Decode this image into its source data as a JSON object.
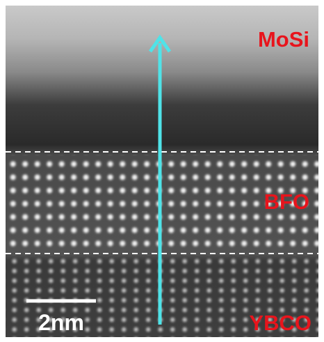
{
  "labels": {
    "top": "MoSi",
    "middle": "BFO",
    "bottom": "YBCO"
  },
  "scale_bar": "2nm"
}
